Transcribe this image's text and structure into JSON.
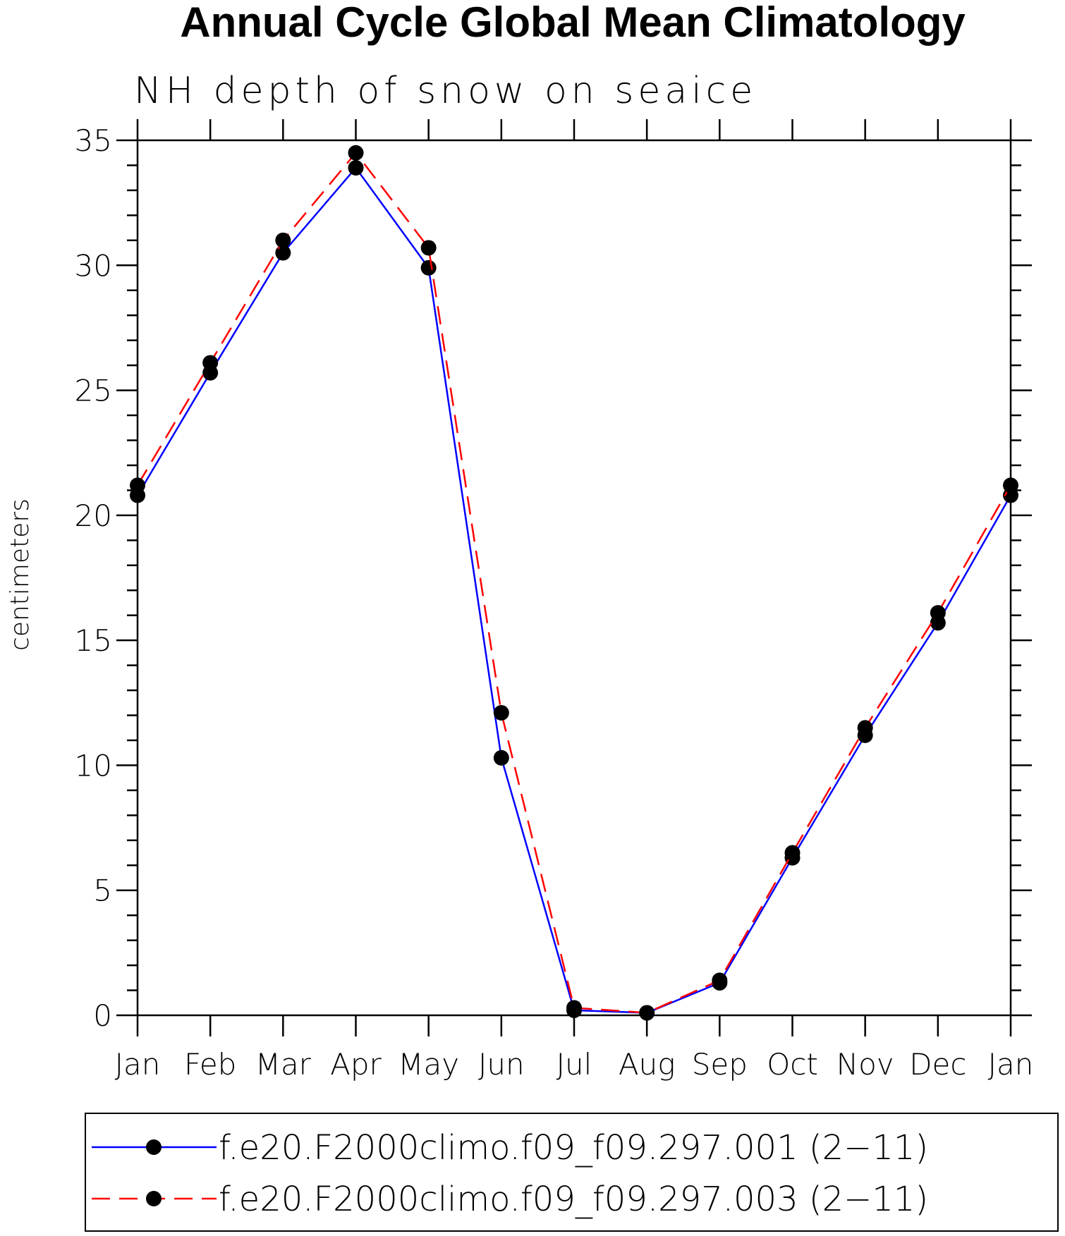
{
  "chart_data": {
    "type": "line",
    "title": "Annual Cycle Global Mean Climatology",
    "subtitle": "NH depth of snow on seaice",
    "ylabel": "centimeters",
    "xlabel": "",
    "categories": [
      "Jan",
      "Feb",
      "Mar",
      "Apr",
      "May",
      "Jun",
      "Jul",
      "Aug",
      "Sep",
      "Oct",
      "Nov",
      "Dec",
      "Jan"
    ],
    "ylim": [
      0,
      35
    ],
    "yticks": [
      0,
      5,
      10,
      15,
      20,
      25,
      30,
      35
    ],
    "grid": false,
    "legend_position": "bottom",
    "series": [
      {
        "name": "f.e20.F2000climo.f09_f09.297.001 (2−11)",
        "color": "#0000ff",
        "line_style": "solid",
        "marker": "filled-circle",
        "values": [
          20.8,
          25.7,
          30.5,
          33.9,
          29.9,
          10.3,
          0.2,
          0.1,
          1.3,
          6.3,
          11.2,
          15.7,
          20.8
        ]
      },
      {
        "name": "f.e20.F2000climo.f09_f09.297.003 (2−11)",
        "color": "#ff0000",
        "line_style": "dashed",
        "marker": "filled-circle",
        "values": [
          21.2,
          26.1,
          31.0,
          34.5,
          30.7,
          12.1,
          0.3,
          0.1,
          1.4,
          6.5,
          11.5,
          16.1,
          21.2
        ]
      }
    ]
  }
}
